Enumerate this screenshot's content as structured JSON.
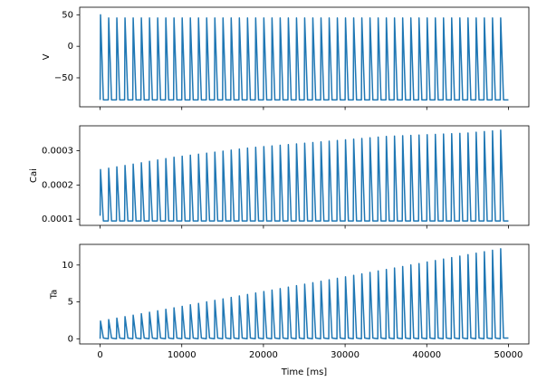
{
  "chart_data": [
    {
      "type": "line",
      "ylabel": "V",
      "color": "#1f77b4",
      "xlim": [
        -2500,
        52500
      ],
      "xticks": [
        0,
        10000,
        20000,
        30000,
        40000,
        50000
      ],
      "ylim": [
        -96,
        62
      ],
      "yticks": [
        {
          "value": -50,
          "label": "−50"
        },
        0,
        50
      ],
      "x": [
        0,
        50,
        400,
        1000,
        1050,
        1400,
        2000,
        2050,
        2400,
        3000,
        3050,
        3400,
        4000,
        4050,
        4400,
        5000,
        5050,
        5400,
        6000,
        6050,
        6400,
        7000,
        7050,
        7400,
        8000,
        8050,
        8400,
        9000,
        9050,
        9400,
        10000,
        10050,
        10400,
        11000,
        11050,
        11400,
        12000,
        12050,
        12400,
        13000,
        13050,
        13400,
        14000,
        14050,
        14400,
        15000,
        15050,
        15400,
        16000,
        16050,
        16400,
        17000,
        17050,
        17400,
        18000,
        18050,
        18400,
        19000,
        19050,
        19400,
        20000,
        20050,
        20400,
        21000,
        21050,
        21400,
        22000,
        22050,
        22400,
        23000,
        23050,
        23400,
        24000,
        24050,
        24400,
        25000,
        25050,
        25400,
        26000,
        26050,
        26400,
        27000,
        27050,
        27400,
        28000,
        28050,
        28400,
        29000,
        29050,
        29400,
        30000,
        30050,
        30400,
        31000,
        31050,
        31400,
        32000,
        32050,
        32400,
        33000,
        33050,
        33400,
        34000,
        34050,
        34400,
        35000,
        35050,
        35400,
        36000,
        36050,
        36400,
        37000,
        37050,
        37400,
        38000,
        38050,
        38400,
        39000,
        39050,
        39400,
        40000,
        40050,
        40400,
        41000,
        41050,
        41400,
        42000,
        42050,
        42400,
        43000,
        43050,
        43400,
        44000,
        44050,
        44400,
        45000,
        45050,
        45400,
        46000,
        46050,
        46400,
        47000,
        47050,
        47400,
        48000,
        48050,
        48400,
        49000,
        49050,
        49400,
        50000
      ],
      "values": [
        -85,
        50,
        -85,
        -85,
        45,
        -85,
        -85,
        45,
        -85,
        -85,
        45,
        -85,
        -85,
        45,
        -85,
        -85,
        45,
        -85,
        -85,
        45,
        -85,
        -85,
        45,
        -85,
        -85,
        45,
        -85,
        -85,
        45,
        -85,
        -85,
        45,
        -85,
        -85,
        45,
        -85,
        -85,
        45,
        -85,
        -85,
        45,
        -85,
        -85,
        45,
        -85,
        -85,
        45,
        -85,
        -85,
        45,
        -85,
        -85,
        45,
        -85,
        -85,
        45,
        -85,
        -85,
        45,
        -85,
        -85,
        45,
        -85,
        -85,
        45,
        -85,
        -85,
        45,
        -85,
        -85,
        45,
        -85,
        -85,
        45,
        -85,
        -85,
        45,
        -85,
        -85,
        45,
        -85,
        -85,
        45,
        -85,
        -85,
        45,
        -85,
        -85,
        45,
        -85,
        -85,
        45,
        -85,
        -85,
        45,
        -85,
        -85,
        45,
        -85,
        -85,
        45,
        -85,
        -85,
        45,
        -85,
        -85,
        45,
        -85,
        -85,
        45,
        -85,
        -85,
        45,
        -85,
        -85,
        45,
        -85,
        -85,
        45,
        -85,
        -85,
        45,
        -85,
        -85,
        45,
        -85,
        -85,
        45,
        -85,
        -85,
        45,
        -85,
        -85,
        45,
        -85,
        -85,
        45,
        -85,
        -85,
        45,
        -85,
        -85,
        45,
        -85,
        -85,
        45,
        -85,
        -85,
        45,
        -85,
        -85
      ]
    },
    {
      "type": "line",
      "ylabel": "Cai",
      "color": "#1f77b4",
      "xlim": [
        -2500,
        52500
      ],
      "xticks": [
        0,
        10000,
        20000,
        30000,
        40000,
        50000
      ],
      "ylim": [
        8.2e-05,
        0.000373
      ],
      "yticks": [
        0.0001,
        0.0002,
        0.0003
      ],
      "x": [
        0,
        50,
        400,
        1000,
        1050,
        1400,
        2000,
        2050,
        2400,
        3000,
        3050,
        3400,
        4000,
        4050,
        4400,
        5000,
        5050,
        5400,
        6000,
        6050,
        6400,
        7000,
        7050,
        7400,
        8000,
        8050,
        8400,
        9000,
        9050,
        9400,
        10000,
        10050,
        10400,
        11000,
        11050,
        11400,
        12000,
        12050,
        12400,
        13000,
        13050,
        13400,
        14000,
        14050,
        14400,
        15000,
        15050,
        15400,
        16000,
        16050,
        16400,
        17000,
        17050,
        17400,
        18000,
        18050,
        18400,
        19000,
        19050,
        19400,
        20000,
        20050,
        20400,
        21000,
        21050,
        21400,
        22000,
        22050,
        22400,
        23000,
        23050,
        23400,
        24000,
        24050,
        24400,
        25000,
        25050,
        25400,
        26000,
        26050,
        26400,
        27000,
        27050,
        27400,
        28000,
        28050,
        28400,
        29000,
        29050,
        29400,
        30000,
        30050,
        30400,
        31000,
        31050,
        31400,
        32000,
        32050,
        32400,
        33000,
        33050,
        33400,
        34000,
        34050,
        34400,
        35000,
        35050,
        35400,
        36000,
        36050,
        36400,
        37000,
        37050,
        37400,
        38000,
        38050,
        38400,
        39000,
        39050,
        39400,
        40000,
        40050,
        40400,
        41000,
        41050,
        41400,
        42000,
        42050,
        42400,
        43000,
        43050,
        43400,
        44000,
        44050,
        44400,
        45000,
        45050,
        45400,
        46000,
        46050,
        46400,
        47000,
        47050,
        47400,
        48000,
        48050,
        48400,
        49000,
        49050,
        49400,
        50000
      ],
      "values": [
        0.00011,
        0.000245,
        9.5e-05,
        9.5e-05,
        0.000249,
        9.5e-05,
        9.5e-05,
        0.000253,
        9.5e-05,
        9.5e-05,
        0.000257,
        9.5e-05,
        9.5e-05,
        0.000261,
        9.5e-05,
        9.5e-05,
        0.000265,
        9.5e-05,
        9.5e-05,
        0.000269,
        9.5e-05,
        9.5e-05,
        0.000273,
        9.5e-05,
        9.5e-05,
        0.000277,
        9.5e-05,
        9.5e-05,
        0.000281,
        9.5e-05,
        9.5e-05,
        0.000284,
        9.5e-05,
        9.5e-05,
        0.000287,
        9.5e-05,
        9.5e-05,
        0.00029,
        9.5e-05,
        9.5e-05,
        0.000293,
        9.5e-05,
        9.5e-05,
        0.000296,
        9.5e-05,
        9.5e-05,
        0.000299,
        9.5e-05,
        9.5e-05,
        0.000302,
        9.5e-05,
        9.5e-05,
        0.000305,
        9.5e-05,
        9.5e-05,
        0.000308,
        9.5e-05,
        9.5e-05,
        0.00031,
        9.5e-05,
        9.5e-05,
        0.000312,
        9.5e-05,
        9.5e-05,
        0.000314,
        9.5e-05,
        9.5e-05,
        0.000316,
        9.5e-05,
        9.5e-05,
        0.000318,
        9.5e-05,
        9.5e-05,
        0.00032,
        9.5e-05,
        9.5e-05,
        0.000322,
        9.5e-05,
        9.5e-05,
        0.000324,
        9.5e-05,
        9.5e-05,
        0.000326,
        9.5e-05,
        9.5e-05,
        0.000328,
        9.5e-05,
        9.5e-05,
        0.00033,
        9.5e-05,
        9.5e-05,
        0.000332,
        9.5e-05,
        9.5e-05,
        0.000334,
        9.5e-05,
        9.5e-05,
        0.000336,
        9.5e-05,
        9.5e-05,
        0.000338,
        9.5e-05,
        9.5e-05,
        0.00034,
        9.5e-05,
        9.5e-05,
        0.000342,
        9.5e-05,
        9.5e-05,
        0.000343,
        9.5e-05,
        9.5e-05,
        0.000344,
        9.5e-05,
        9.5e-05,
        0.000345,
        9.5e-05,
        9.5e-05,
        0.000346,
        9.5e-05,
        9.5e-05,
        0.000347,
        9.5e-05,
        9.5e-05,
        0.000348,
        9.5e-05,
        9.5e-05,
        0.000349,
        9.5e-05,
        9.5e-05,
        0.00035,
        9.5e-05,
        9.5e-05,
        0.000351,
        9.5e-05,
        9.5e-05,
        0.000352,
        9.5e-05,
        9.5e-05,
        0.000354,
        9.5e-05,
        9.5e-05,
        0.000356,
        9.5e-05,
        9.5e-05,
        0.000358,
        9.5e-05,
        9.5e-05,
        0.00036,
        9.5e-05,
        9.5e-05
      ]
    },
    {
      "type": "line",
      "ylabel": "Ta",
      "xlabel": "Time [ms]",
      "color": "#1f77b4",
      "xlim": [
        -2500,
        52500
      ],
      "xticks": [
        0,
        10000,
        20000,
        30000,
        40000,
        50000
      ],
      "ylim": [
        -0.7,
        12.8
      ],
      "yticks": [
        0,
        5,
        10
      ],
      "x": [
        0,
        50,
        400,
        1000,
        1050,
        1400,
        2000,
        2050,
        2400,
        3000,
        3050,
        3400,
        4000,
        4050,
        4400,
        5000,
        5050,
        5400,
        6000,
        6050,
        6400,
        7000,
        7050,
        7400,
        8000,
        8050,
        8400,
        9000,
        9050,
        9400,
        10000,
        10050,
        10400,
        11000,
        11050,
        11400,
        12000,
        12050,
        12400,
        13000,
        13050,
        13400,
        14000,
        14050,
        14400,
        15000,
        15050,
        15400,
        16000,
        16050,
        16400,
        17000,
        17050,
        17400,
        18000,
        18050,
        18400,
        19000,
        19050,
        19400,
        20000,
        20050,
        20400,
        21000,
        21050,
        21400,
        22000,
        22050,
        22400,
        23000,
        23050,
        23400,
        24000,
        24050,
        24400,
        25000,
        25050,
        25400,
        26000,
        26050,
        26400,
        27000,
        27050,
        27400,
        28000,
        28050,
        28400,
        29000,
        29050,
        29400,
        30000,
        30050,
        30400,
        31000,
        31050,
        31400,
        32000,
        32050,
        32400,
        33000,
        33050,
        33400,
        34000,
        34050,
        34400,
        35000,
        35050,
        35400,
        36000,
        36050,
        36400,
        37000,
        37050,
        37400,
        38000,
        38050,
        38400,
        39000,
        39050,
        39400,
        40000,
        40050,
        40400,
        41000,
        41050,
        41400,
        42000,
        42050,
        42400,
        43000,
        43050,
        43400,
        44000,
        44050,
        44400,
        45000,
        45050,
        45400,
        46000,
        46050,
        46400,
        47000,
        47050,
        47400,
        48000,
        48050,
        48400,
        49000,
        49050,
        49400,
        50000
      ],
      "values": [
        0,
        2.4,
        0.1,
        0,
        2.6,
        0.1,
        0,
        2.8,
        0.1,
        0,
        3,
        0.1,
        0,
        3.2,
        0.1,
        0,
        3.4,
        0.1,
        0,
        3.6,
        0.1,
        0,
        3.8,
        0.1,
        0,
        4,
        0.1,
        0,
        4.2,
        0.1,
        0,
        4.4,
        0.1,
        0,
        4.6,
        0.1,
        0,
        4.8,
        0.1,
        0,
        5,
        0.1,
        0,
        5.2,
        0.1,
        0,
        5.4,
        0.1,
        0,
        5.6,
        0.1,
        0,
        5.8,
        0.1,
        0,
        6,
        0.1,
        0,
        6.2,
        0.1,
        0,
        6.4,
        0.1,
        0,
        6.6,
        0.1,
        0,
        6.8,
        0.1,
        0,
        7,
        0.1,
        0,
        7.2,
        0.1,
        0,
        7.4,
        0.1,
        0,
        7.6,
        0.1,
        0,
        7.8,
        0.1,
        0,
        8,
        0.1,
        0,
        8.2,
        0.1,
        0,
        8.4,
        0.1,
        0,
        8.6,
        0.1,
        0,
        8.8,
        0.1,
        0,
        9,
        0.1,
        0,
        9.2,
        0.1,
        0,
        9.4,
        0.1,
        0,
        9.6,
        0.1,
        0,
        9.8,
        0.1,
        0,
        10,
        0.1,
        0,
        10.2,
        0.1,
        0,
        10.4,
        0.1,
        0,
        10.6,
        0.1,
        0,
        10.8,
        0.1,
        0,
        11,
        0.1,
        0,
        11.2,
        0.1,
        0,
        11.4,
        0.1,
        0,
        11.6,
        0.1,
        0,
        11.8,
        0.1,
        0,
        12,
        0.1,
        0,
        12.2,
        0.1,
        0.1
      ]
    }
  ]
}
